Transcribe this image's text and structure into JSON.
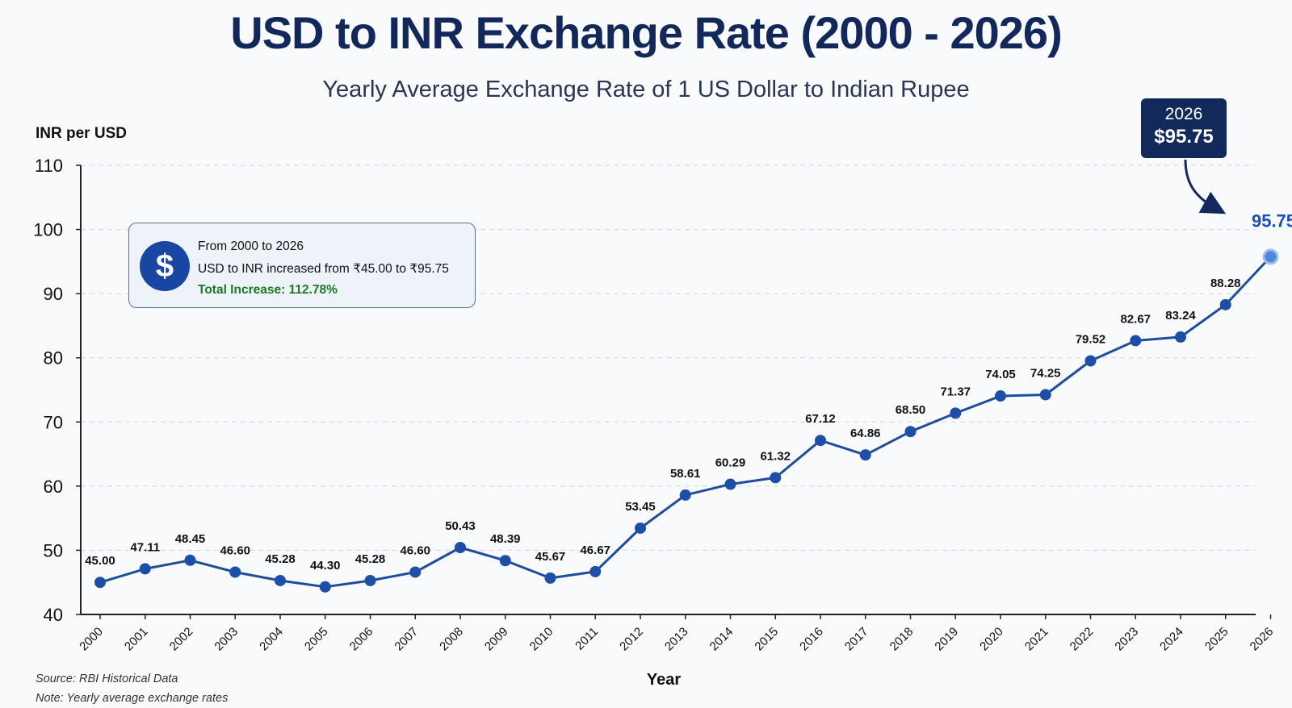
{
  "chart_data": {
    "type": "line",
    "title": "USD to INR Exchange Rate (2000 - 2026)",
    "subtitle": "Yearly Average Exchange Rate of 1 US Dollar to Indian Rupee",
    "xlabel": "Year",
    "ylabel": "INR per USD",
    "ylim": [
      40,
      110
    ],
    "yticks": [
      40,
      50,
      60,
      70,
      80,
      90,
      100,
      110
    ],
    "grid": "horizontal dashed",
    "categories": [
      "2000",
      "2001",
      "2002",
      "2003",
      "2004",
      "2005",
      "2006",
      "2007",
      "2008",
      "2009",
      "2010",
      "2011",
      "2012",
      "2013",
      "2014",
      "2015",
      "2016",
      "2017",
      "2018",
      "2019",
      "2020",
      "2021",
      "2022",
      "2023",
      "2024",
      "2025",
      "2026"
    ],
    "values": [
      45.0,
      47.11,
      48.45,
      46.6,
      45.28,
      44.3,
      45.28,
      46.6,
      50.43,
      48.39,
      45.67,
      46.67,
      53.45,
      58.61,
      60.29,
      61.32,
      67.12,
      64.86,
      68.5,
      71.37,
      74.05,
      74.25,
      79.52,
      82.67,
      83.24,
      88.28,
      95.75
    ],
    "data_labels": [
      "45.00",
      "47.11",
      "48.45",
      "46.60",
      "45.28",
      "44.30",
      "45.28",
      "46.60",
      "50.43",
      "48.39",
      "45.67",
      "46.67",
      "53.45",
      "58.61",
      "60.29",
      "61.32",
      "67.12",
      "64.86",
      "68.50",
      "71.37",
      "74.05",
      "74.25",
      "79.52",
      "82.67",
      "83.24",
      "88.28",
      "95.75"
    ],
    "line_color": "#1f4d9e",
    "highlight_color": "#1f4fb5"
  },
  "info_box": {
    "icon": "dollar-icon",
    "line1": "From 2000 to 2026",
    "line2": "USD to INR increased from ₹45.00 to ₹95.75",
    "line3": "Total Increase: 112.78%",
    "highlight_color": "#1a7a24"
  },
  "callout": {
    "year": "2026",
    "value": "$95.75"
  },
  "footnotes": {
    "source": "Source: RBI Historical Data",
    "note": "Note: Yearly average exchange rates"
  }
}
